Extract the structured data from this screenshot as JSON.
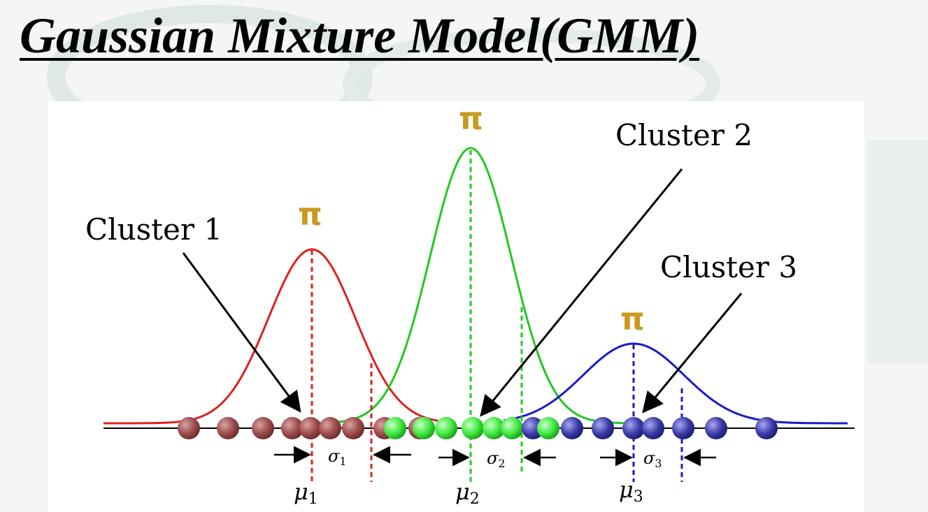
{
  "title": "Gaussian Mixture Model(GMM)",
  "pi_symbol": "π",
  "colors": {
    "cluster1": "#e02020",
    "cluster2": "#22c822",
    "cluster3": "#1a1acc",
    "pi": "#c99a1f",
    "point1": "#9b4a4a",
    "point2": "#3ee83e",
    "point3": "#3a3aa8"
  },
  "clusters": [
    {
      "label": "Cluster 1",
      "sigma": "σ",
      "sigma_sub": "1",
      "mu": "μ",
      "mu_sub": "1"
    },
    {
      "label": "Cluster 2",
      "sigma": "σ",
      "sigma_sub": "2",
      "mu": "μ",
      "mu_sub": "2"
    },
    {
      "label": "Cluster 3",
      "sigma": "σ",
      "sigma_sub": "3",
      "mu": "μ",
      "mu_sub": "3"
    }
  ]
}
